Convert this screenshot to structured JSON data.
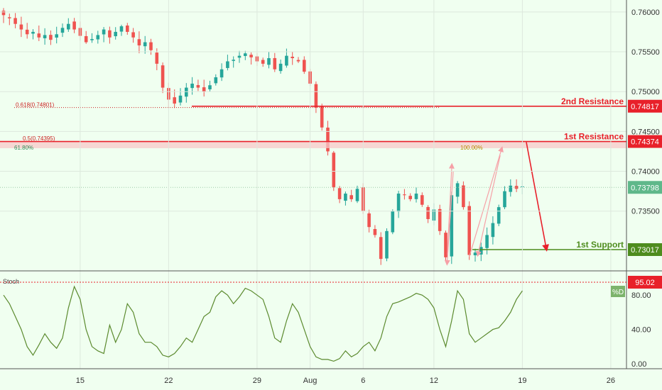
{
  "colors": {
    "background": "#f0fff0",
    "up": "#26a69a",
    "down": "#ef5350",
    "resistance": "#e8202a",
    "support": "#4e8c1e",
    "current": "#4caf7d",
    "fib": "#cc2222",
    "stoch": "#5b8a2e",
    "pink": "#f6a0a6",
    "grid": "#555555"
  },
  "chart_data": [
    {
      "type": "candlestick",
      "ylim": [
        0.7275,
        0.7615
      ],
      "y_ticks": [
        "0.76000",
        "0.75500",
        "0.75000",
        "0.74500",
        "0.74000",
        "0.73500"
      ],
      "y_tick_values": [
        0.76,
        0.755,
        0.75,
        0.745,
        0.74,
        0.735
      ],
      "x_ticks": [
        "15",
        "22",
        "29",
        "Aug",
        "6",
        "12",
        "19",
        "26"
      ],
      "x_tick_index": [
        13,
        28,
        43,
        52,
        61,
        73,
        88,
        103
      ],
      "close_path_index": [
        0,
        1,
        2,
        3,
        4,
        5,
        6,
        7,
        8,
        9,
        10,
        11,
        12,
        13,
        14,
        15,
        16,
        17,
        18,
        19,
        20,
        21,
        22,
        23,
        24,
        25,
        26,
        27,
        28,
        29,
        30,
        31,
        32,
        33,
        34,
        35,
        36,
        37,
        38,
        39,
        40,
        41,
        42,
        43,
        44,
        45,
        46,
        47,
        48,
        49,
        50,
        51,
        52,
        53,
        54,
        55,
        56,
        57,
        58,
        59,
        60,
        61,
        62,
        63,
        64,
        65,
        66,
        67,
        68,
        69,
        70,
        71,
        72,
        73,
        74,
        75,
        76,
        77,
        78,
        79,
        80,
        81,
        82,
        83,
        84,
        85,
        86,
        87,
        88
      ],
      "close_path": [
        0.7596,
        0.7592,
        0.7585,
        0.7578,
        0.7572,
        0.7575,
        0.7568,
        0.7571,
        0.7565,
        0.7572,
        0.758,
        0.7585,
        0.7578,
        0.757,
        0.7562,
        0.7566,
        0.7571,
        0.7578,
        0.7568,
        0.7575,
        0.7582,
        0.7575,
        0.7568,
        0.7558,
        0.7562,
        0.7552,
        0.7535,
        0.7505,
        0.749,
        0.7485,
        0.7495,
        0.7505,
        0.751,
        0.7505,
        0.75,
        0.7508,
        0.7518,
        0.7528,
        0.7538,
        0.754,
        0.7545,
        0.7548,
        0.7543,
        0.7538,
        0.7535,
        0.7542,
        0.7528,
        0.7535,
        0.7545,
        0.7542,
        0.7538,
        0.7525,
        0.751,
        0.748,
        0.7455,
        0.7425,
        0.738,
        0.7365,
        0.7372,
        0.7365,
        0.7378,
        0.735,
        0.733,
        0.732,
        0.729,
        0.7325,
        0.735,
        0.7372,
        0.737,
        0.7365,
        0.7372,
        0.7358,
        0.734,
        0.7352,
        0.7325,
        0.7292,
        0.737,
        0.7385,
        0.7355,
        0.7295,
        0.7298,
        0.7305,
        0.732,
        0.7335,
        0.7355,
        0.7375,
        0.7382,
        0.7378,
        0.7381
      ]
    },
    {
      "type": "line",
      "name": "Stoch",
      "ylim": [
        0,
        100
      ],
      "y_ticks": [
        "80.00",
        "40.00",
        "0.00"
      ],
      "y_tick_values": [
        80,
        40,
        0
      ],
      "x_index": [
        0,
        1,
        2,
        3,
        4,
        5,
        6,
        7,
        8,
        9,
        10,
        11,
        12,
        13,
        14,
        15,
        16,
        17,
        18,
        19,
        20,
        21,
        22,
        23,
        24,
        25,
        26,
        27,
        28,
        29,
        30,
        31,
        32,
        33,
        34,
        35,
        36,
        37,
        38,
        39,
        40,
        41,
        42,
        43,
        44,
        45,
        46,
        47,
        48,
        49,
        50,
        51,
        52,
        53,
        54,
        55,
        56,
        57,
        58,
        59,
        60,
        61,
        62,
        63,
        64,
        65,
        66,
        67,
        68,
        69,
        70,
        71,
        72,
        73,
        74,
        75,
        76,
        77,
        78,
        79,
        80,
        81,
        82,
        83,
        84,
        85,
        86,
        87,
        88
      ],
      "values": [
        80,
        70,
        55,
        40,
        20,
        10,
        22,
        35,
        25,
        18,
        30,
        65,
        90,
        75,
        40,
        20,
        15,
        12,
        45,
        25,
        40,
        70,
        60,
        35,
        25,
        25,
        20,
        10,
        8,
        12,
        20,
        30,
        25,
        40,
        55,
        60,
        78,
        85,
        80,
        70,
        78,
        88,
        85,
        80,
        75,
        55,
        30,
        25,
        50,
        70,
        60,
        40,
        20,
        8,
        5,
        5,
        3,
        6,
        15,
        8,
        12,
        20,
        25,
        15,
        30,
        55,
        70,
        72,
        75,
        78,
        82,
        80,
        75,
        65,
        40,
        20,
        50,
        85,
        75,
        35,
        25,
        30,
        35,
        40,
        42,
        50,
        60,
        75,
        85
      ]
    }
  ],
  "levels": {
    "second_resistance": {
      "label": "2nd Resistance",
      "value": 0.74817,
      "price_text": "0.74817"
    },
    "first_resistance": {
      "label": "1st Resistance",
      "value": 0.74374,
      "price_text": "0.74374"
    },
    "first_support": {
      "label": "1st Support",
      "value": 0.73017,
      "price_text": "0.73017"
    },
    "current": {
      "value": 0.73798,
      "price_text": "0.73798"
    }
  },
  "fib": {
    "f618": {
      "label": "0.618(0.74801)",
      "value": 0.74801
    },
    "f50": {
      "label": "0.5(0.74395)",
      "value": 0.74395
    },
    "pct_left": {
      "label": "61.80%",
      "value": 0.7429
    },
    "pct_mid": {
      "label": "100.00%",
      "value": 0.7429
    }
  },
  "stoch": {
    "label": "Stoch",
    "badge": "%D",
    "overbought": {
      "value": 95.02,
      "text": "95.02"
    }
  }
}
